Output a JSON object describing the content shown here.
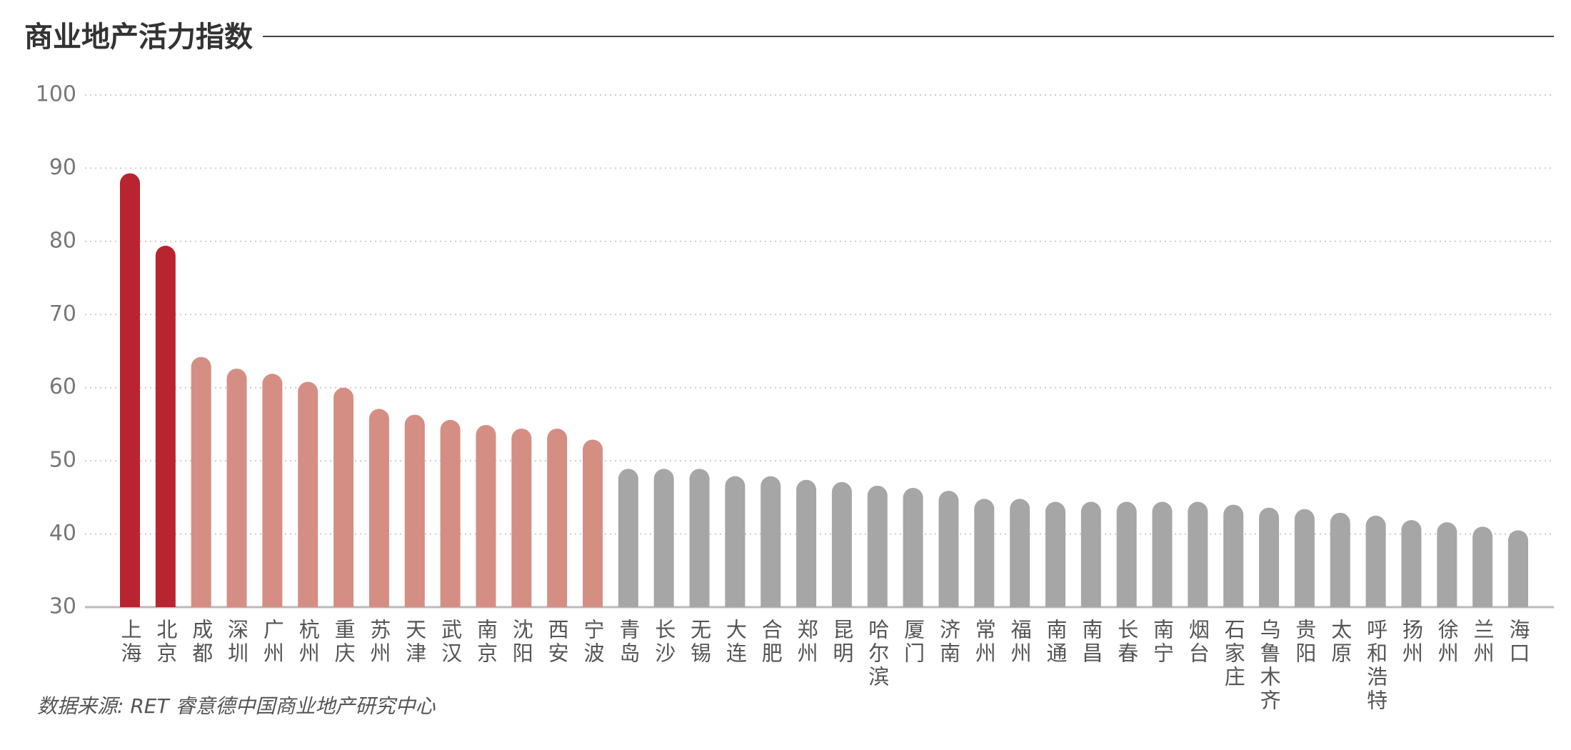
{
  "chart_data": {
    "type": "bar",
    "title": "商业地产活力指数",
    "source": "数据来源: RET 睿意德中国商业地产研究中心",
    "categories": [
      "上海",
      "北京",
      "成都",
      "深圳",
      "广州",
      "杭州",
      "重庆",
      "苏州",
      "天津",
      "武汉",
      "南京",
      "沈阳",
      "西安",
      "宁波",
      "青岛",
      "长沙",
      "无锡",
      "大连",
      "合肥",
      "郑州",
      "昆明",
      "哈尔滨",
      "厦门",
      "济南",
      "常州",
      "福州",
      "南通",
      "南昌",
      "长春",
      "南宁",
      "烟台",
      "石家庄",
      "乌鲁木齐",
      "贵阳",
      "太原",
      "呼和浩特",
      "扬州",
      "徐州",
      "兰州",
      "海口"
    ],
    "values": [
      89.3,
      79.4,
      64.2,
      62.6,
      61.9,
      60.8,
      60.0,
      57.1,
      56.3,
      55.6,
      54.9,
      54.4,
      54.4,
      52.9,
      48.9,
      48.9,
      48.9,
      47.9,
      47.9,
      47.4,
      47.1,
      46.6,
      46.3,
      45.9,
      44.8,
      44.8,
      44.4,
      44.4,
      44.4,
      44.4,
      44.4,
      44.0,
      43.6,
      43.4,
      42.9,
      42.5,
      41.9,
      41.6,
      41.0,
      40.5
    ],
    "colors": [
      "#b82430",
      "#b82430",
      "#d58e84",
      "#d58e84",
      "#d58e84",
      "#d58e84",
      "#d58e84",
      "#d58e84",
      "#d58e84",
      "#d58e84",
      "#d58e84",
      "#d58e84",
      "#d58e84",
      "#d58e84",
      "#a6a6a6",
      "#a6a6a6",
      "#a6a6a6",
      "#a6a6a6",
      "#a6a6a6",
      "#a6a6a6",
      "#a6a6a6",
      "#a6a6a6",
      "#a6a6a6",
      "#a6a6a6",
      "#a6a6a6",
      "#a6a6a6",
      "#a6a6a6",
      "#a6a6a6",
      "#a6a6a6",
      "#a6a6a6",
      "#a6a6a6",
      "#a6a6a6",
      "#a6a6a6",
      "#a6a6a6",
      "#a6a6a6",
      "#a6a6a6",
      "#a6a6a6",
      "#a6a6a6",
      "#a6a6a6",
      "#a6a6a6"
    ],
    "ylim": [
      30,
      100
    ],
    "yticks": [
      30,
      40,
      50,
      60,
      70,
      80,
      90,
      100
    ],
    "grid": true
  }
}
